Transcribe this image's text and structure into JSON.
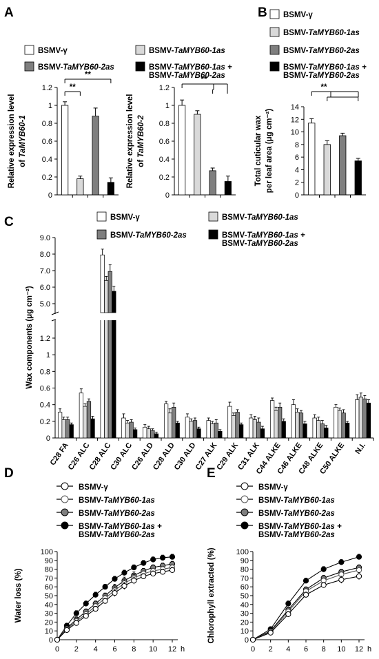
{
  "panel_labels": [
    "A",
    "B",
    "C",
    "D",
    "E"
  ],
  "legend": {
    "gamma": "BSMV-γ",
    "as1": "BSMV-TaMYB60-1as",
    "as2": "BSMV-TaMYB60-2as",
    "combo_line1": "BSMV-TaMYB60-1as +",
    "combo_line2": "BSMV-TaMYB60-2as"
  },
  "colors": {
    "gamma": "#ffffff",
    "as1": "#d9d9d9",
    "as2": "#7f7f7f",
    "combo": "#000000"
  },
  "chart_data": [
    {
      "id": "A1",
      "type": "bar",
      "ylabel": "Relative expression level of TaMYB60-1",
      "ylim": [
        0,
        1.2
      ],
      "yticks": [
        0,
        0.2,
        0.4,
        0.6,
        0.8,
        1,
        1.2
      ],
      "series": [
        {
          "name": "BSMV-γ",
          "values": [
            1.0
          ],
          "errors": [
            0.04
          ]
        },
        {
          "name": "BSMV-TaMYB60-1as",
          "values": [
            0.18
          ],
          "errors": [
            0.03
          ]
        },
        {
          "name": "BSMV-TaMYB60-2as",
          "values": [
            0.88
          ],
          "errors": [
            0.09
          ]
        },
        {
          "name": "BSMV-TaMYB60-1as + BSMV-TaMYB60-2as",
          "values": [
            0.14
          ],
          "errors": [
            0.05
          ]
        }
      ],
      "significance": [
        "**",
        "**"
      ]
    },
    {
      "id": "A2",
      "type": "bar",
      "ylabel": "Relative expression level of TaMYB60-2",
      "ylim": [
        0,
        1.2
      ],
      "yticks": [
        0,
        0.2,
        0.4,
        0.6,
        0.8,
        1,
        1.2
      ],
      "series": [
        {
          "name": "BSMV-γ",
          "values": [
            1.0
          ],
          "errors": [
            0.06
          ]
        },
        {
          "name": "BSMV-TaMYB60-1as",
          "values": [
            0.9
          ],
          "errors": [
            0.04
          ]
        },
        {
          "name": "BSMV-TaMYB60-2as",
          "values": [
            0.27
          ],
          "errors": [
            0.03
          ]
        },
        {
          "name": "BSMV-TaMYB60-1as + BSMV-TaMYB60-2as",
          "values": [
            0.15
          ],
          "errors": [
            0.06
          ]
        }
      ],
      "significance": [
        "**"
      ]
    },
    {
      "id": "B",
      "type": "bar",
      "ylabel_line1": "Total cuticular wax",
      "ylabel_line2": "per leaf area (μg cm⁻²)",
      "ylim": [
        0,
        14
      ],
      "yticks": [
        0,
        2,
        4,
        6,
        8,
        10,
        12,
        14
      ],
      "series": [
        {
          "name": "BSMV-γ",
          "values": [
            11.4
          ],
          "errors": [
            0.7
          ]
        },
        {
          "name": "BSMV-TaMYB60-1as",
          "values": [
            8.0
          ],
          "errors": [
            0.6
          ]
        },
        {
          "name": "BSMV-TaMYB60-2as",
          "values": [
            9.4
          ],
          "errors": [
            0.4
          ]
        },
        {
          "name": "BSMV-TaMYB60-1as + BSMV-TaMYB60-2as",
          "values": [
            5.4
          ],
          "errors": [
            0.4
          ]
        }
      ],
      "significance": [
        "**"
      ]
    },
    {
      "id": "C",
      "type": "bar",
      "ylabel": "Wax components (μg cm⁻²)",
      "broken_axis": true,
      "yticks_low": [
        0,
        0.2,
        0.4,
        0.6,
        0.8,
        1,
        1.2
      ],
      "yticks_high": [
        5.0,
        6.0,
        7.0,
        8.0,
        9.0
      ],
      "categories": [
        "C28 FA",
        "C26 ALC",
        "C28 ALC",
        "C30 ALC",
        "C26 ALD",
        "C28 ALD",
        "C30 ALD",
        "C27 ALK",
        "C29 ALK",
        "C31 ALK",
        "C44 ALKE",
        "C46 ALKE",
        "C48 ALKE",
        "C50 ALKE",
        "N.I."
      ],
      "series": [
        {
          "name": "BSMV-γ",
          "values": [
            0.31,
            0.54,
            7.95,
            0.24,
            0.13,
            0.41,
            0.25,
            0.21,
            0.38,
            0.24,
            0.45,
            0.4,
            0.24,
            0.37,
            0.46
          ],
          "errors": [
            0.04,
            0.05,
            0.35,
            0.05,
            0.03,
            0.03,
            0.04,
            0.03,
            0.05,
            0.04,
            0.03,
            0.06,
            0.04,
            0.03,
            0.06
          ]
        },
        {
          "name": "BSMV-TaMYB60-1as",
          "values": [
            0.22,
            0.38,
            6.4,
            0.18,
            0.11,
            0.3,
            0.2,
            0.17,
            0.27,
            0.22,
            0.33,
            0.31,
            0.21,
            0.33,
            0.49
          ],
          "errors": [
            0.03,
            0.03,
            0.25,
            0.03,
            0.03,
            0.05,
            0.03,
            0.03,
            0.03,
            0.04,
            0.04,
            0.04,
            0.04,
            0.03,
            0.05
          ]
        },
        {
          "name": "BSMV-TaMYB60-2as",
          "values": [
            0.22,
            0.44,
            6.95,
            0.19,
            0.09,
            0.37,
            0.21,
            0.18,
            0.31,
            0.19,
            0.37,
            0.3,
            0.17,
            0.3,
            0.47
          ],
          "errors": [
            0.03,
            0.03,
            0.4,
            0.03,
            0.02,
            0.05,
            0.03,
            0.04,
            0.03,
            0.05,
            0.05,
            0.03,
            0.04,
            0.04,
            0.04
          ]
        },
        {
          "name": "BSMV-TaMYB60-1as + BSMV-TaMYB60-2as",
          "values": [
            0.16,
            0.23,
            5.75,
            0.1,
            0.05,
            0.18,
            0.11,
            0.08,
            0.16,
            0.11,
            0.2,
            0.17,
            0.12,
            0.18,
            0.42
          ],
          "errors": [
            0.02,
            0.03,
            0.3,
            0.02,
            0.02,
            0.02,
            0.02,
            0.02,
            0.02,
            0.03,
            0.03,
            0.03,
            0.03,
            0.02,
            0.04
          ]
        }
      ]
    },
    {
      "id": "D",
      "type": "line",
      "ylabel": "Water loss (%)",
      "x_unit": "h",
      "xlim": [
        0,
        12
      ],
      "ylim": [
        0,
        100
      ],
      "xticks": [
        0,
        2,
        4,
        6,
        8,
        10,
        12
      ],
      "yticks": [
        0,
        10,
        20,
        30,
        40,
        50,
        60,
        70,
        80,
        90,
        100
      ],
      "x": [
        0,
        1,
        2,
        3,
        4,
        5,
        6,
        7,
        8,
        9,
        10,
        11,
        12
      ],
      "series": [
        {
          "name": "BSMV-γ",
          "values": [
            0,
            11,
            19,
            27,
            35,
            44,
            53,
            61,
            67,
            72,
            75,
            77,
            79
          ],
          "errors": [
            1,
            2,
            3,
            3,
            3,
            3,
            4,
            4,
            4,
            3,
            3,
            3,
            3
          ]
        },
        {
          "name": "BSMV-TaMYB60-1as",
          "values": [
            0,
            12,
            21,
            29,
            38,
            47,
            56,
            64,
            70,
            75,
            78,
            80,
            82
          ],
          "errors": [
            1,
            2,
            3,
            3,
            3,
            3,
            4,
            4,
            4,
            3,
            3,
            3,
            3
          ]
        },
        {
          "name": "BSMV-TaMYB60-2as",
          "values": [
            0,
            13,
            23,
            32,
            41,
            50,
            59,
            67,
            73,
            78,
            82,
            84,
            86
          ],
          "errors": [
            1,
            2,
            3,
            3,
            3,
            3,
            4,
            4,
            4,
            3,
            3,
            3,
            3
          ]
        },
        {
          "name": "BSMV-TaMYB60-1as + BSMV-TaMYB60-2as",
          "values": [
            0,
            16,
            30,
            41,
            51,
            60,
            69,
            76,
            82,
            87,
            91,
            93,
            94
          ],
          "errors": [
            1,
            2,
            3,
            3,
            3,
            3,
            3,
            3,
            3,
            3,
            3,
            3,
            3
          ]
        }
      ]
    },
    {
      "id": "E",
      "type": "line",
      "ylabel": "Chlorophyll extracted (%)",
      "x_unit": "h",
      "xlim": [
        0,
        12
      ],
      "ylim": [
        0,
        100
      ],
      "xticks": [
        0,
        2,
        4,
        6,
        8,
        10,
        12
      ],
      "yticks": [
        0,
        10,
        20,
        30,
        40,
        50,
        60,
        70,
        80,
        90,
        100
      ],
      "x": [
        0,
        2,
        4,
        6,
        8,
        10,
        12
      ],
      "series": [
        {
          "name": "BSMV-γ",
          "values": [
            0,
            8,
            29,
            51,
            62,
            68,
            72
          ],
          "errors": [
            1,
            2,
            3,
            3,
            3,
            4,
            4
          ]
        },
        {
          "name": "BSMV-TaMYB60-1as",
          "values": [
            0,
            9,
            32,
            55,
            67,
            74,
            79
          ],
          "errors": [
            1,
            2,
            3,
            3,
            3,
            3,
            3
          ]
        },
        {
          "name": "BSMV-TaMYB60-2as",
          "values": [
            0,
            10,
            34,
            57,
            70,
            77,
            82
          ],
          "errors": [
            1,
            2,
            3,
            3,
            3,
            3,
            3
          ]
        },
        {
          "name": "BSMV-TaMYB60-1as + BSMV-TaMYB60-2as",
          "values": [
            0,
            12,
            41,
            67,
            80,
            88,
            94
          ],
          "errors": [
            1,
            2,
            3,
            3,
            3,
            3,
            3
          ]
        }
      ]
    }
  ]
}
